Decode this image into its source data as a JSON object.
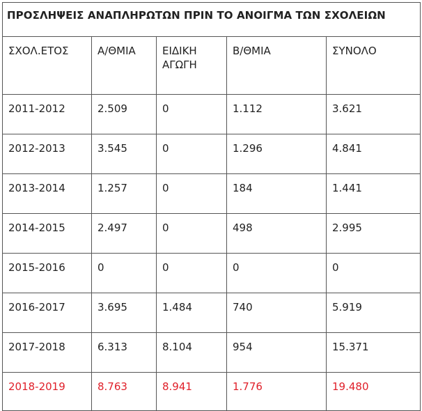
{
  "title": "ΠΡΟΣΛΗΨΕΙΣ ΑΝΑΠΛΗΡΩΤΩΝ ΠΡΙΝ ΤΟ ΑΝΟΙΓΜΑ ΤΩΝ ΣΧΟΛΕΙΩΝ",
  "highlight_color": "#e0202a",
  "columns": [
    "ΣΧΟΛ.ΕΤΟΣ",
    "Α/ΘΜΙΑ",
    "ΕΙΔΙΚΗ ΑΓΩΓΗ",
    "Β/ΘΜΙΑ",
    "ΣΥΝΟΛΟ"
  ],
  "rows": [
    [
      "2011-2012",
      "2.509",
      "0",
      "1.112",
      "3.621"
    ],
    [
      "2012-2013",
      "3.545",
      "0",
      "1.296",
      "4.841"
    ],
    [
      "2013-2014",
      "1.257",
      "0",
      "184",
      "1.441"
    ],
    [
      "2014-2015",
      "2.497",
      "0",
      "498",
      "2.995"
    ],
    [
      "2015-2016",
      "0",
      "0",
      "0",
      "0"
    ],
    [
      "2016-2017",
      "3.695",
      "1.484",
      "740",
      "5.919"
    ],
    [
      "2017-2018",
      "6.313",
      "8.104",
      "954",
      "15.371"
    ],
    [
      "2018-2019",
      "8.763",
      "8.941",
      "1.776",
      "19.480"
    ]
  ]
}
